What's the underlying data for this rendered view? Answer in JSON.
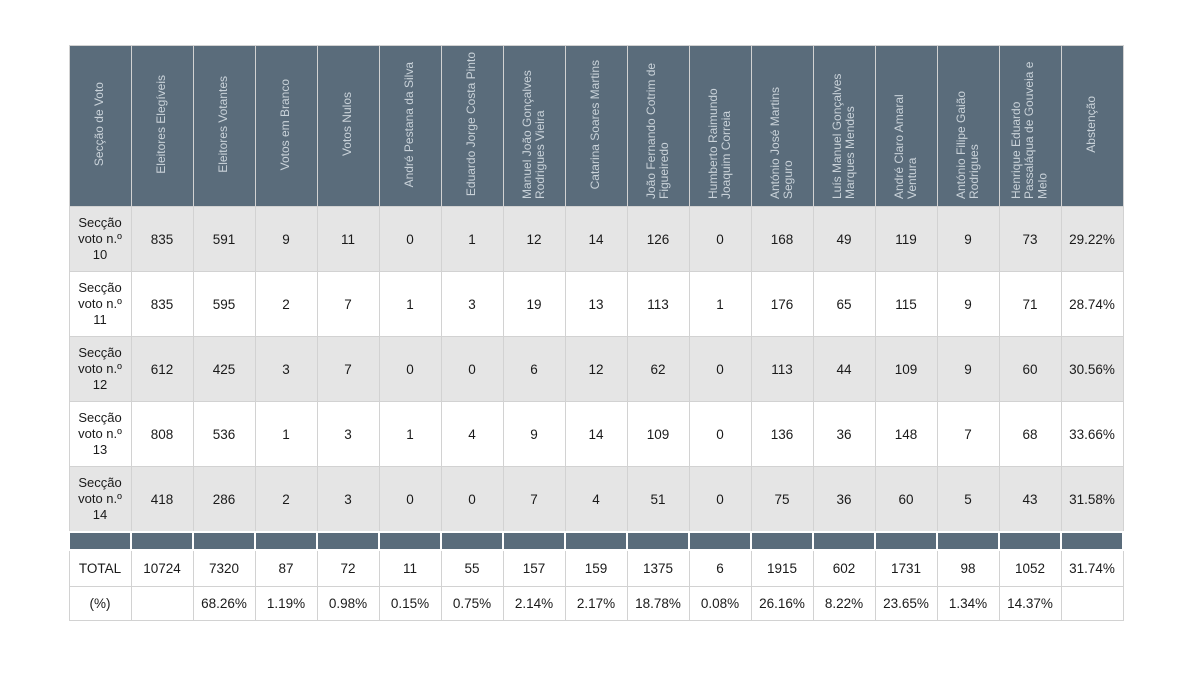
{
  "headers": [
    "Secção de Voto",
    "Eleitores Elegíveis",
    "Eleitores Votantes",
    "Votos em Branco",
    "Votos Nulos",
    "André Pestana da Silva",
    "Eduardo Jorge Costa Pinto",
    "Manuel João Gonçalves Rodrigues Vieira",
    "Catarina Soares Martins",
    "João Fernando Cotrim de Figueiredo",
    "Humberto Raimundo Joaquim Correia",
    "António José Martins Seguro",
    "Luís Manuel Gonçalves Marques Mendes",
    "André Claro Amaral Ventura",
    "António Filipe Gaião Rodrigues",
    "Henrique Eduardo Passaláqua de Gouveia e Melo",
    "Abstenção"
  ],
  "rows": [
    [
      "Secção voto n.º 10",
      "835",
      "591",
      "9",
      "11",
      "0",
      "1",
      "12",
      "14",
      "126",
      "0",
      "168",
      "49",
      "119",
      "9",
      "73",
      "29.22%"
    ],
    [
      "Secção voto n.º 11",
      "835",
      "595",
      "2",
      "7",
      "1",
      "3",
      "19",
      "13",
      "113",
      "1",
      "176",
      "65",
      "115",
      "9",
      "71",
      "28.74%"
    ],
    [
      "Secção voto n.º 12",
      "612",
      "425",
      "3",
      "7",
      "0",
      "0",
      "6",
      "12",
      "62",
      "0",
      "113",
      "44",
      "109",
      "9",
      "60",
      "30.56%"
    ],
    [
      "Secção voto n.º 13",
      "808",
      "536",
      "1",
      "3",
      "1",
      "4",
      "9",
      "14",
      "109",
      "0",
      "136",
      "36",
      "148",
      "7",
      "68",
      "33.66%"
    ],
    [
      "Secção voto n.º 14",
      "418",
      "286",
      "2",
      "3",
      "0",
      "0",
      "7",
      "4",
      "51",
      "0",
      "75",
      "36",
      "60",
      "5",
      "43",
      "31.58%"
    ]
  ],
  "total": [
    "TOTAL",
    "10724",
    "7320",
    "87",
    "72",
    "11",
    "55",
    "157",
    "159",
    "1375",
    "6",
    "1915",
    "602",
    "1731",
    "98",
    "1052",
    "31.74%"
  ],
  "percent": [
    "(%)",
    "",
    "68.26%",
    "1.19%",
    "0.98%",
    "0.15%",
    "0.75%",
    "2.14%",
    "2.17%",
    "18.78%",
    "0.08%",
    "26.16%",
    "8.22%",
    "23.65%",
    "1.34%",
    "14.37%",
    ""
  ],
  "colors": {
    "header_bg": "#5a6c7b",
    "header_text": "#c9d2d9",
    "row_alt_bg": "#e5e5e5",
    "border": "#d2d2d2"
  }
}
